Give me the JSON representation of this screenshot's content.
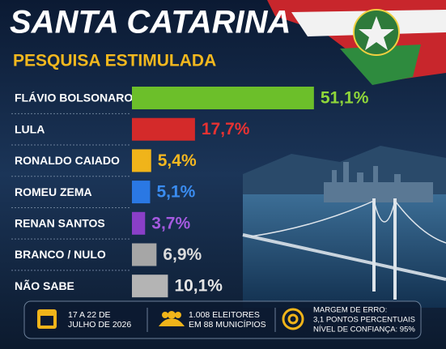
{
  "chart_data": {
    "type": "bar",
    "orientation": "horizontal",
    "title": "SANTA CATARINA",
    "subtitle": "PESQUISA ESTIMULADA",
    "categories": [
      "FLÁVIO BOLSONARO",
      "LULA",
      "RONALDO CAIADO",
      "ROMEU ZEMA",
      "RENAN SANTOS",
      "BRANCO / NULO",
      "NÃO SABE"
    ],
    "values": [
      51.1,
      17.7,
      5.4,
      5.1,
      3.7,
      6.9,
      10.1
    ],
    "value_labels": [
      "51,1%",
      "17,7%",
      "5,4%",
      "5,1%",
      "3,7%",
      "6,9%",
      "10,1%"
    ],
    "colors": [
      "#6cbf2a",
      "#d42a2a",
      "#f0b41a",
      "#2a78e4",
      "#8a3fc8",
      "#a6a6a6",
      "#b4b4b4"
    ],
    "label_colors": [
      "#8fd63a",
      "#e63232",
      "#f5b820",
      "#3a8cf0",
      "#a45ae0",
      "#dcdcdc",
      "#e6e6e6"
    ],
    "notes": [
      [
        "17 A 22 DE",
        "JULHO DE 2026"
      ],
      [
        "1.008 ELEITORES",
        "EM 88 MUNICÍPIOS"
      ],
      [
        "MARGEM DE ERRO:",
        "3,1 PONTOS PERCENTUAIS",
        "NÍVEL DE CONFIANÇA: 95%"
      ]
    ]
  }
}
